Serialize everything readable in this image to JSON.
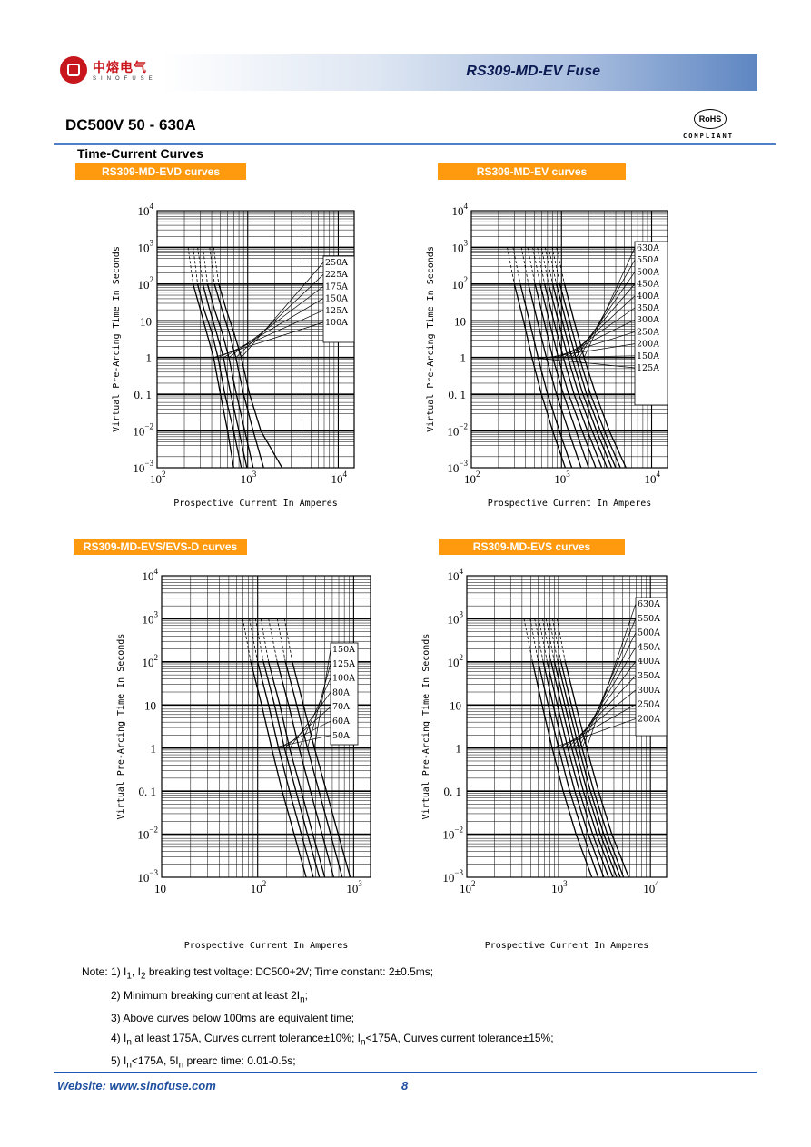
{
  "header": {
    "company_cn": "中熔电气",
    "company_en": "SINOFUSE",
    "product_title": "RS309-MD-EV Fuse"
  },
  "main_title": "DC500V 50 - 630A",
  "rohs": {
    "mark": "RoHS",
    "label": "COMPLIANT"
  },
  "section_title": "Time-Current Curves",
  "chart_data": [
    {
      "type": "line",
      "title": "RS309-MD-EVD curves",
      "xlabel": "Prospective Current In Amperes",
      "ylabel": "Virtual Pre-Arcing Time In Seconds",
      "x_scale": "log",
      "y_scale": "log",
      "xlim": [
        100,
        15000
      ],
      "ylim": [
        0.001,
        10000
      ],
      "x_ticks": [
        {
          "v": 100,
          "b": "10",
          "e": "2"
        },
        {
          "v": 1000,
          "b": "10",
          "e": "3"
        },
        {
          "v": 10000,
          "b": "10",
          "e": "4"
        }
      ],
      "y_ticks": [
        {
          "v": 10000,
          "b": "10",
          "e": "4"
        },
        {
          "v": 1000,
          "b": "10",
          "e": "3"
        },
        {
          "v": 100,
          "b": "10",
          "e": "2"
        },
        {
          "v": 10,
          "b": "10",
          "e": ""
        },
        {
          "v": 1,
          "b": "1",
          "e": ""
        },
        {
          "v": 0.1,
          "b": "0. 1",
          "e": ""
        },
        {
          "v": 0.01,
          "b": "10",
          "e": "−2"
        },
        {
          "v": 0.001,
          "b": "10",
          "e": "−3"
        }
      ],
      "legend": [
        "250A",
        "225A",
        "175A",
        "150A",
        "125A",
        "100A"
      ],
      "series": [
        {
          "name": "100A",
          "x": [
            220,
            250,
            300,
            350,
            420,
            500,
            600,
            700
          ],
          "y": [
            1000,
            100,
            20,
            5,
            1,
            0.1,
            0.01,
            0.001
          ]
        },
        {
          "name": "125A",
          "x": [
            250,
            280,
            330,
            400,
            470,
            560,
            700,
            850
          ],
          "y": [
            1000,
            100,
            20,
            5,
            1,
            0.1,
            0.01,
            0.001
          ]
        },
        {
          "name": "150A",
          "x": [
            280,
            320,
            380,
            450,
            540,
            650,
            800,
            980
          ],
          "y": [
            1000,
            100,
            20,
            5,
            1,
            0.1,
            0.01,
            0.001
          ]
        },
        {
          "name": "175A",
          "x": [
            320,
            360,
            430,
            520,
            620,
            750,
            930,
            1150
          ],
          "y": [
            1000,
            100,
            20,
            5,
            1,
            0.1,
            0.01,
            0.001
          ]
        },
        {
          "name": "225A",
          "x": [
            380,
            430,
            520,
            620,
            740,
            900,
            1150,
            1500
          ],
          "y": [
            1000,
            100,
            20,
            5,
            1,
            0.1,
            0.01,
            0.001
          ]
        },
        {
          "name": "250A",
          "x": [
            420,
            480,
            580,
            700,
            850,
            1050,
            1400,
            2400
          ],
          "y": [
            1000,
            100,
            20,
            5,
            1,
            0.1,
            0.01,
            0.001
          ]
        }
      ]
    },
    {
      "type": "line",
      "title": "RS309-MD-EV curves",
      "xlabel": "Prospective Current In Amperes",
      "ylabel": "Virtual Pre-Arcing Time In Seconds",
      "x_scale": "log",
      "y_scale": "log",
      "xlim": [
        100,
        15000
      ],
      "ylim": [
        0.001,
        10000
      ],
      "x_ticks": [
        {
          "v": 100,
          "b": "10",
          "e": "2"
        },
        {
          "v": 1000,
          "b": "10",
          "e": "3"
        },
        {
          "v": 10000,
          "b": "10",
          "e": "4"
        }
      ],
      "y_ticks": [
        {
          "v": 10000,
          "b": "10",
          "e": "4"
        },
        {
          "v": 1000,
          "b": "10",
          "e": "3"
        },
        {
          "v": 100,
          "b": "10",
          "e": "2"
        },
        {
          "v": 10,
          "b": "10",
          "e": ""
        },
        {
          "v": 1,
          "b": "1",
          "e": ""
        },
        {
          "v": 0.1,
          "b": "0. 1",
          "e": ""
        },
        {
          "v": 0.01,
          "b": "10",
          "e": "−2"
        },
        {
          "v": 0.001,
          "b": "10",
          "e": "−3"
        }
      ],
      "legend": [
        "630A",
        "550A",
        "500A",
        "450A",
        "400A",
        "350A",
        "300A",
        "250A",
        "200A",
        "150A",
        "125A"
      ],
      "series": [
        {
          "name": "125A",
          "x": [
            250,
            300,
            380,
            470,
            600,
            800,
            1100
          ],
          "y": [
            1000,
            100,
            10,
            1,
            0.1,
            0.01,
            0.001
          ]
        },
        {
          "name": "150A",
          "x": [
            290,
            350,
            440,
            550,
            700,
            950,
            1300
          ],
          "y": [
            1000,
            100,
            10,
            1,
            0.1,
            0.01,
            0.001
          ]
        },
        {
          "name": "200A",
          "x": [
            360,
            430,
            540,
            680,
            880,
            1200,
            1650
          ],
          "y": [
            1000,
            100,
            10,
            1,
            0.1,
            0.01,
            0.001
          ]
        },
        {
          "name": "250A",
          "x": [
            420,
            510,
            640,
            800,
            1050,
            1450,
            2000
          ],
          "y": [
            1000,
            100,
            10,
            1,
            0.1,
            0.01,
            0.001
          ]
        },
        {
          "name": "300A",
          "x": [
            480,
            580,
            730,
            920,
            1200,
            1700,
            2400
          ],
          "y": [
            1000,
            100,
            10,
            1,
            0.1,
            0.01,
            0.001
          ]
        },
        {
          "name": "350A",
          "x": [
            540,
            650,
            820,
            1050,
            1380,
            1950,
            2800
          ],
          "y": [
            1000,
            100,
            10,
            1,
            0.1,
            0.01,
            0.001
          ]
        },
        {
          "name": "400A",
          "x": [
            600,
            720,
            920,
            1180,
            1550,
            2200,
            3200
          ],
          "y": [
            1000,
            100,
            10,
            1,
            0.1,
            0.01,
            0.001
          ]
        },
        {
          "name": "450A",
          "x": [
            660,
            800,
            1020,
            1300,
            1730,
            2450,
            3600
          ],
          "y": [
            1000,
            100,
            10,
            1,
            0.1,
            0.01,
            0.001
          ]
        },
        {
          "name": "500A",
          "x": [
            720,
            880,
            1120,
            1440,
            1900,
            2700,
            4000
          ],
          "y": [
            1000,
            100,
            10,
            1,
            0.1,
            0.01,
            0.001
          ]
        },
        {
          "name": "550A",
          "x": [
            790,
            960,
            1230,
            1580,
            2100,
            3000,
            4500
          ],
          "y": [
            1000,
            100,
            10,
            1,
            0.1,
            0.01,
            0.001
          ]
        },
        {
          "name": "630A",
          "x": [
            880,
            1080,
            1380,
            1780,
            2400,
            3400,
            5200
          ],
          "y": [
            1000,
            100,
            10,
            1,
            0.1,
            0.01,
            0.001
          ]
        }
      ]
    },
    {
      "type": "line",
      "title": "RS309-MD-EVS/EVS-D curves",
      "xlabel": "Prospective Current In Amperes",
      "ylabel": "Virtual Pre-Arcing Time In Seconds",
      "x_scale": "log",
      "y_scale": "log",
      "xlim": [
        10,
        1500
      ],
      "ylim": [
        0.001,
        10000
      ],
      "x_ticks": [
        {
          "v": 10,
          "b": "10",
          "e": ""
        },
        {
          "v": 100,
          "b": "10",
          "e": "2"
        },
        {
          "v": 1000,
          "b": "10",
          "e": "3"
        }
      ],
      "y_ticks": [
        {
          "v": 10000,
          "b": "10",
          "e": "4"
        },
        {
          "v": 1000,
          "b": "10",
          "e": "3"
        },
        {
          "v": 100,
          "b": "10",
          "e": "2"
        },
        {
          "v": 10,
          "b": "10",
          "e": ""
        },
        {
          "v": 1,
          "b": "1",
          "e": ""
        },
        {
          "v": 0.1,
          "b": "0. 1",
          "e": ""
        },
        {
          "v": 0.01,
          "b": "10",
          "e": "−2"
        },
        {
          "v": 0.001,
          "b": "10",
          "e": "−3"
        }
      ],
      "legend": [
        "150A",
        "125A",
        "100A",
        "80A",
        "70A",
        "60A",
        "50A"
      ],
      "series": [
        {
          "name": "50A",
          "x": [
            70,
            85,
            110,
            140,
            180,
            240,
            320
          ],
          "y": [
            1000,
            100,
            10,
            1,
            0.1,
            0.01,
            0.001
          ]
        },
        {
          "name": "60A",
          "x": [
            82,
            100,
            130,
            165,
            215,
            285,
            380
          ],
          "y": [
            1000,
            100,
            10,
            1,
            0.1,
            0.01,
            0.001
          ]
        },
        {
          "name": "70A",
          "x": [
            95,
            115,
            150,
            190,
            250,
            330,
            440
          ],
          "y": [
            1000,
            100,
            10,
            1,
            0.1,
            0.01,
            0.001
          ]
        },
        {
          "name": "80A",
          "x": [
            108,
            130,
            170,
            215,
            285,
            375,
            500
          ],
          "y": [
            1000,
            100,
            10,
            1,
            0.1,
            0.01,
            0.001
          ]
        },
        {
          "name": "100A",
          "x": [
            130,
            160,
            210,
            270,
            355,
            470,
            620
          ],
          "y": [
            1000,
            100,
            10,
            1,
            0.1,
            0.01,
            0.001
          ]
        },
        {
          "name": "125A",
          "x": [
            160,
            195,
            255,
            330,
            435,
            575,
            760
          ],
          "y": [
            1000,
            100,
            10,
            1,
            0.1,
            0.01,
            0.001
          ]
        },
        {
          "name": "150A",
          "x": [
            190,
            230,
            300,
            390,
            520,
            690,
            920
          ],
          "y": [
            1000,
            100,
            10,
            1,
            0.1,
            0.01,
            0.001
          ]
        }
      ]
    },
    {
      "type": "line",
      "title": "RS309-MD-EVS curves",
      "xlabel": "Prospective Current In Amperes",
      "ylabel": "Virtual Pre-Arcing Time In Seconds",
      "x_scale": "log",
      "y_scale": "log",
      "xlim": [
        100,
        15000
      ],
      "ylim": [
        0.001,
        10000
      ],
      "x_ticks": [
        {
          "v": 100,
          "b": "10",
          "e": "2"
        },
        {
          "v": 1000,
          "b": "10",
          "e": "3"
        },
        {
          "v": 10000,
          "b": "10",
          "e": "4"
        }
      ],
      "y_ticks": [
        {
          "v": 10000,
          "b": "10",
          "e": "4"
        },
        {
          "v": 1000,
          "b": "10",
          "e": "3"
        },
        {
          "v": 100,
          "b": "10",
          "e": "2"
        },
        {
          "v": 10,
          "b": "10",
          "e": ""
        },
        {
          "v": 1,
          "b": "1",
          "e": ""
        },
        {
          "v": 0.1,
          "b": "0. 1",
          "e": ""
        },
        {
          "v": 0.01,
          "b": "10",
          "e": "−2"
        },
        {
          "v": 0.001,
          "b": "10",
          "e": "−3"
        }
      ],
      "legend": [
        "630A",
        "550A",
        "500A",
        "450A",
        "400A",
        "350A",
        "300A",
        "250A",
        "200A"
      ],
      "series": [
        {
          "name": "200A",
          "x": [
            420,
            520,
            660,
            850,
            1120,
            1550,
            2300
          ],
          "y": [
            1000,
            100,
            10,
            1,
            0.1,
            0.01,
            0.001
          ]
        },
        {
          "name": "250A",
          "x": [
            490,
            600,
            770,
            1000,
            1320,
            1850,
            2700
          ],
          "y": [
            1000,
            100,
            10,
            1,
            0.1,
            0.01,
            0.001
          ]
        },
        {
          "name": "300A",
          "x": [
            550,
            680,
            870,
            1130,
            1500,
            2100,
            3100
          ],
          "y": [
            1000,
            100,
            10,
            1,
            0.1,
            0.01,
            0.001
          ]
        },
        {
          "name": "350A",
          "x": [
            610,
            750,
            970,
            1260,
            1680,
            2350,
            3500
          ],
          "y": [
            1000,
            100,
            10,
            1,
            0.1,
            0.01,
            0.001
          ]
        },
        {
          "name": "400A",
          "x": [
            670,
            830,
            1070,
            1390,
            1860,
            2600,
            3900
          ],
          "y": [
            1000,
            100,
            10,
            1,
            0.1,
            0.01,
            0.001
          ]
        },
        {
          "name": "450A",
          "x": [
            730,
            900,
            1170,
            1520,
            2040,
            2850,
            4300
          ],
          "y": [
            1000,
            100,
            10,
            1,
            0.1,
            0.01,
            0.001
          ]
        },
        {
          "name": "500A",
          "x": [
            790,
            980,
            1270,
            1660,
            2220,
            3100,
            4700
          ],
          "y": [
            1000,
            100,
            10,
            1,
            0.1,
            0.01,
            0.001
          ]
        },
        {
          "name": "550A",
          "x": [
            860,
            1060,
            1380,
            1800,
            2420,
            3400,
            5100
          ],
          "y": [
            1000,
            100,
            10,
            1,
            0.1,
            0.01,
            0.001
          ]
        },
        {
          "name": "630A",
          "x": [
            960,
            1180,
            1540,
            2020,
            2720,
            3800,
            5800
          ],
          "y": [
            1000,
            100,
            10,
            1,
            0.1,
            0.01,
            0.001
          ]
        }
      ]
    }
  ],
  "notes": [
    "Note: 1) I1, I2 breaking test voltage: DC500+2V; Time constant: 2±0.5ms;",
    "2) Minimum breaking current at least 2In;",
    "3) Above curves below 100ms are equivalent time;",
    "4) In at least 175A, Curves current tolerance±10%; In<175A, Curves current tolerance±15%;",
    "5) In<175A, 5In prearc time: 0.01-0.5s;"
  ],
  "footer": {
    "website": "Website: www.sinofuse.com",
    "page": "8"
  }
}
